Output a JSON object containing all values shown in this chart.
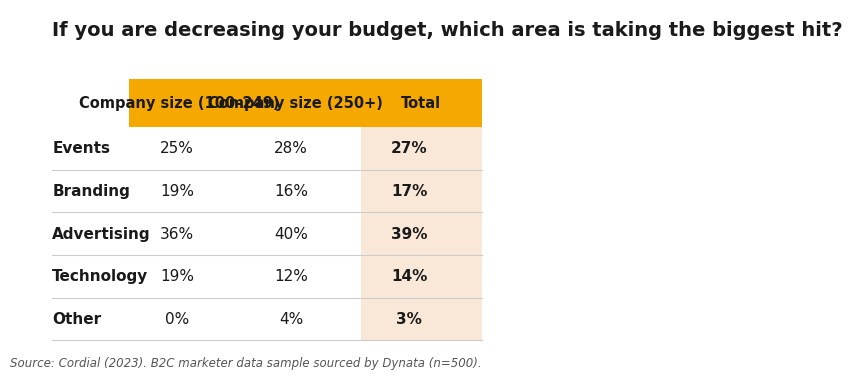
{
  "title": "If you are decreasing your budget, which area is taking the biggest hit?",
  "columns": [
    "Company size (100–249)",
    "Company size (250+)",
    "Total"
  ],
  "rows": [
    "Events",
    "Branding",
    "Advertising",
    "Technology",
    "Other"
  ],
  "data": [
    [
      "25%",
      "28%",
      "27%"
    ],
    [
      "19%",
      "16%",
      "17%"
    ],
    [
      "36%",
      "40%",
      "39%"
    ],
    [
      "19%",
      "12%",
      "14%"
    ],
    [
      "0%",
      "4%",
      "3%"
    ]
  ],
  "header_bg": "#F5A800",
  "header_text": "#1a1a1a",
  "total_col_bg": "#F9E8D8",
  "row_separator_color": "#cccccc",
  "source_text": "Source: Cordial (2023). B2C marketer data sample sourced by Dynata (n=500).",
  "bg_color": "#ffffff",
  "title_fontsize": 14,
  "header_fontsize": 10.5,
  "data_fontsize": 11,
  "row_label_fontsize": 11,
  "source_fontsize": 8.5
}
